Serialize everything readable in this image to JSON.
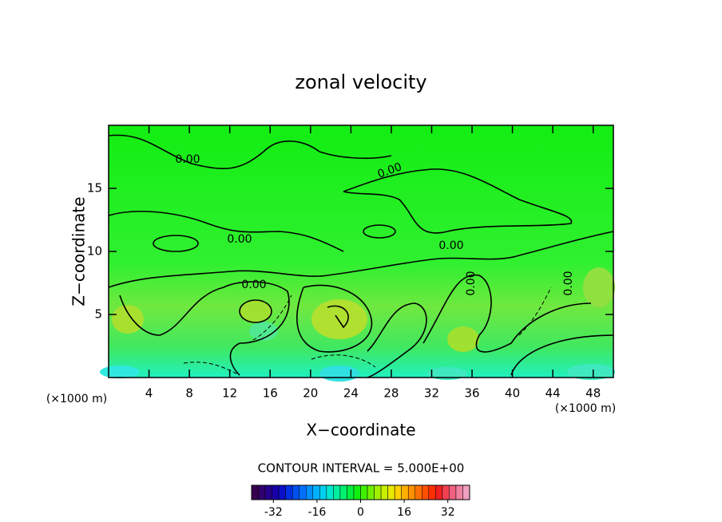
{
  "chart_data": {
    "type": "contour",
    "title": "zonal velocity",
    "xlabel": "X−coordinate",
    "ylabel": "Z−coordinate",
    "x_unit_labels": [
      "(×1000 m)",
      "(×1000 m)"
    ],
    "xlim": [
      0,
      50
    ],
    "xticks": [
      4,
      8,
      12,
      16,
      20,
      24,
      28,
      32,
      36,
      40,
      44,
      48
    ],
    "ylim": [
      0,
      20
    ],
    "yticks": [
      5,
      10,
      15
    ],
    "contour_labels": [
      "0.00",
      "0.00",
      "0.00",
      "0.00",
      "0.00",
      "0.00",
      "0.00"
    ],
    "contour_interval": "CONTOUR INTERVAL = 5.000E+00",
    "colorbar": {
      "lim": [
        -40,
        40
      ],
      "ticks": [
        -32,
        -16,
        0,
        16,
        32
      ],
      "colors": [
        "#3a0050",
        "#30006e",
        "#24008c",
        "#1800aa",
        "#0a10c8",
        "#0030e0",
        "#0050f0",
        "#0070ff",
        "#0090ff",
        "#00b0ff",
        "#00d0f0",
        "#00e8d0",
        "#00f0a0",
        "#00f070",
        "#00f040",
        "#10f010",
        "#40f000",
        "#70f000",
        "#a0f000",
        "#c8f000",
        "#e8e800",
        "#ffd000",
        "#ffb000",
        "#ff9000",
        "#ff7000",
        "#ff5000",
        "#ff3000",
        "#f02020",
        "#f04050",
        "#f06080",
        "#f080a0",
        "#f0a0c0"
      ]
    }
  }
}
